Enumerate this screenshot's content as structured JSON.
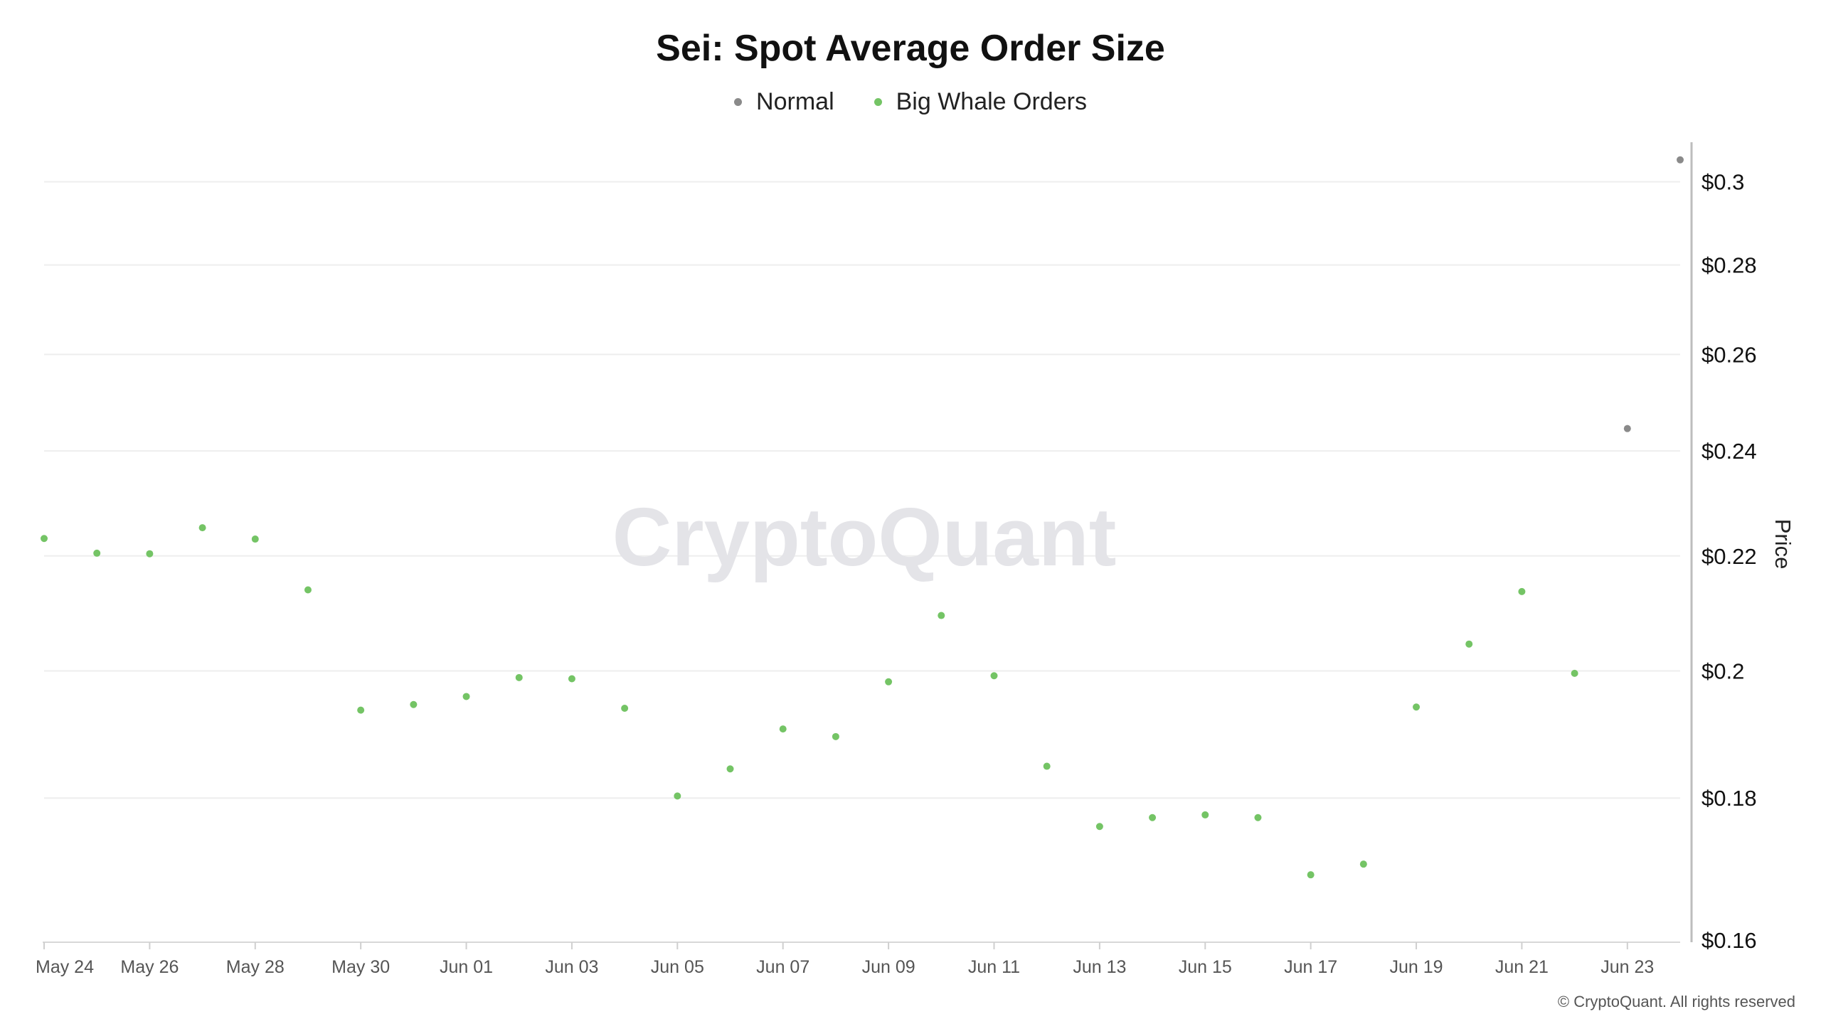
{
  "chart_data": {
    "type": "scatter",
    "title": "Sei: Spot Average Order Size",
    "ylabel": "Price",
    "watermark": "CryptoQuant",
    "copyright": "© CryptoQuant. All rights reserved",
    "legend_position": "top-center",
    "y_scale": "log",
    "grid": true,
    "ylim": [
      0.16,
      0.31
    ],
    "x_ticks": [
      "May 24",
      "May 26",
      "May 28",
      "May 30",
      "Jun 01",
      "Jun 03",
      "Jun 05",
      "Jun 07",
      "Jun 09",
      "Jun 11",
      "Jun 13",
      "Jun 15",
      "Jun 17",
      "Jun 19",
      "Jun 21",
      "Jun 23"
    ],
    "y_ticks": [
      0.16,
      0.18,
      0.2,
      0.22,
      0.24,
      0.26,
      0.28,
      0.3
    ],
    "y_tick_labels": [
      "$0.16",
      "$0.18",
      "$0.2",
      "$0.22",
      "$0.24",
      "$0.26",
      "$0.28",
      "$0.3"
    ],
    "series": [
      {
        "name": "Normal",
        "color": "#8a8a8a",
        "points": [
          {
            "x": "Jun 23",
            "y": 0.2445
          },
          {
            "x": "Jun 24",
            "y": 0.3055
          }
        ]
      },
      {
        "name": "Big Whale Orders",
        "color": "#74c465",
        "points": [
          {
            "x": "May 24",
            "y": 0.2232
          },
          {
            "x": "May 25",
            "y": 0.2205
          },
          {
            "x": "May 26",
            "y": 0.2204
          },
          {
            "x": "May 27",
            "y": 0.2252
          },
          {
            "x": "May 28",
            "y": 0.2231
          },
          {
            "x": "May 29",
            "y": 0.2139
          },
          {
            "x": "May 30",
            "y": 0.1936
          },
          {
            "x": "May 31",
            "y": 0.1945
          },
          {
            "x": "Jun 01",
            "y": 0.1958
          },
          {
            "x": "Jun 02",
            "y": 0.1989
          },
          {
            "x": "Jun 03",
            "y": 0.1987
          },
          {
            "x": "Jun 04",
            "y": 0.1939
          },
          {
            "x": "Jun 05",
            "y": 0.1803
          },
          {
            "x": "Jun 06",
            "y": 0.1844
          },
          {
            "x": "Jun 07",
            "y": 0.1906
          },
          {
            "x": "Jun 08",
            "y": 0.1894
          },
          {
            "x": "Jun 09",
            "y": 0.1982
          },
          {
            "x": "Jun 10",
            "y": 0.2094
          },
          {
            "x": "Jun 11",
            "y": 0.1992
          },
          {
            "x": "Jun 12",
            "y": 0.1848
          },
          {
            "x": "Jun 13",
            "y": 0.1758
          },
          {
            "x": "Jun 14",
            "y": 0.1771
          },
          {
            "x": "Jun 15",
            "y": 0.1775
          },
          {
            "x": "Jun 16",
            "y": 0.1771
          },
          {
            "x": "Jun 17",
            "y": 0.1689
          },
          {
            "x": "Jun 18",
            "y": 0.1704
          },
          {
            "x": "Jun 19",
            "y": 0.1941
          },
          {
            "x": "Jun 20",
            "y": 0.2045
          },
          {
            "x": "Jun 21",
            "y": 0.2136
          },
          {
            "x": "Jun 22",
            "y": 0.1996
          }
        ]
      }
    ]
  }
}
